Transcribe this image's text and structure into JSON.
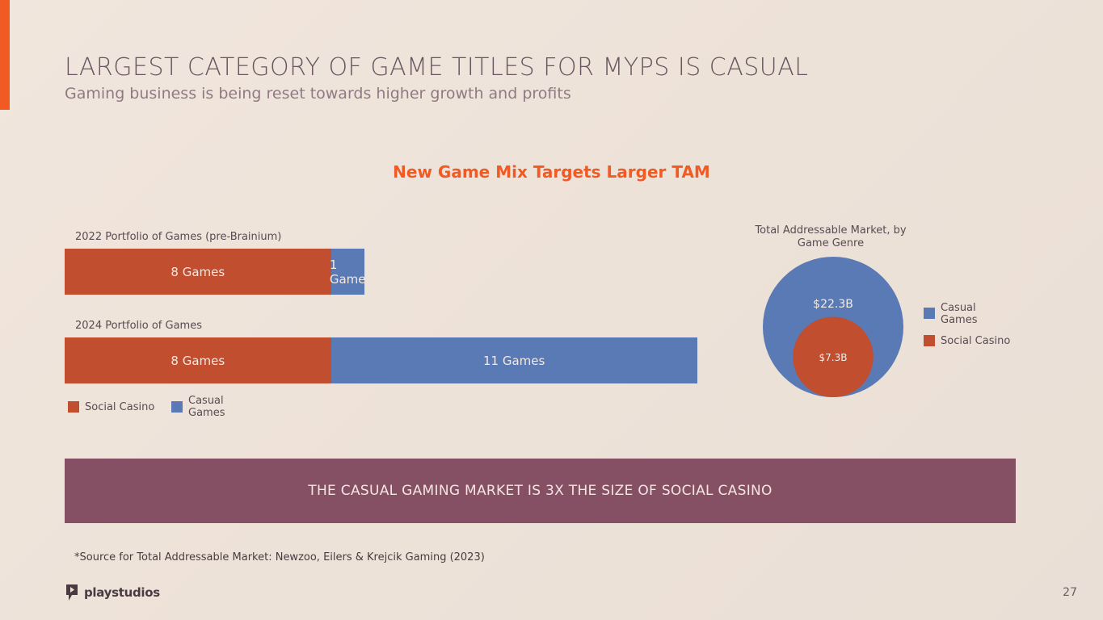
{
  "header": {
    "title": "LARGEST CATEGORY OF GAME TITLES FOR MYPS IS CASUAL",
    "subtitle": "Gaming business is being reset towards higher growth and profits"
  },
  "section_heading": "New Game Mix Targets Larger TAM",
  "colors": {
    "accent": "#f15a22",
    "social_casino": "#c04e2f",
    "casual_games": "#5a7ab5",
    "banner": "#854f64"
  },
  "chart_data": [
    {
      "type": "bar",
      "orientation": "horizontal-stacked",
      "categories": [
        "2022 Portfolio of Games (pre-Brainium)",
        "2024 Portfolio of Games"
      ],
      "series": [
        {
          "name": "Social Casino",
          "values": [
            8,
            8
          ],
          "labels": [
            "8 Games",
            "8 Games"
          ]
        },
        {
          "name": "Casual Games",
          "values": [
            1,
            11
          ],
          "labels": [
            "1 Game",
            "11 Games"
          ]
        }
      ],
      "legend": [
        {
          "label": "Social Casino",
          "color": "#c04e2f"
        },
        {
          "label": "Casual Games",
          "color": "#5a7ab5"
        }
      ]
    },
    {
      "type": "nested-bubble",
      "title": "Total Addressable Market, by Game Genre",
      "series": [
        {
          "name": "Casual Games",
          "value": 22.3,
          "label": "$22.3B"
        },
        {
          "name": "Social Casino",
          "value": 7.3,
          "label": "$7.3B"
        }
      ],
      "legend": [
        {
          "label": "Casual Games",
          "color": "#5a7ab5"
        },
        {
          "label": "Social Casino",
          "color": "#c04e2f"
        }
      ]
    }
  ],
  "banner_text": "THE CASUAL GAMING MARKET IS 3X THE SIZE OF SOCIAL CASINO",
  "source_note": "*Source for Total Addressable Market:  Newzoo, Eilers & Krejcik Gaming (2023)",
  "footer": {
    "logo_text": "playstudios",
    "page_number": "27"
  }
}
